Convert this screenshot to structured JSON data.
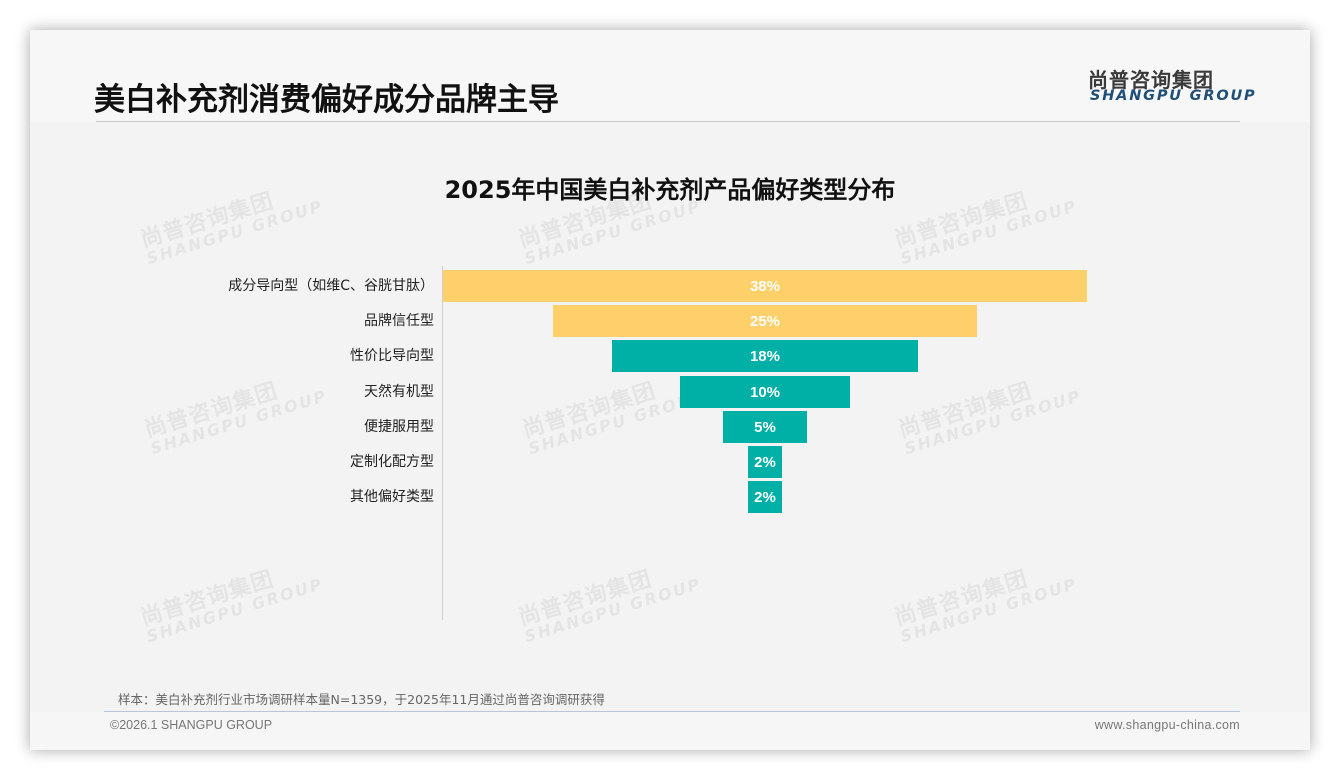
{
  "header": {
    "title": "美白补充剂消费偏好成分品牌主导",
    "logo_cn": "尚普咨询集团",
    "logo_en": "SHANGPU GROUP"
  },
  "watermark": {
    "cn": "尚普咨询集团",
    "en": "SHANGPU GROUP"
  },
  "colors": {
    "highlight": "#fdd06a",
    "primary": "#00b0a6",
    "background": "#f3f3f3",
    "logo_en": "#1f4e79"
  },
  "chart_data": {
    "type": "bar",
    "subtype": "funnel",
    "title": "2025年中国美白补充剂产品偏好类型分布",
    "xlabel": "",
    "ylabel": "",
    "unit": "%",
    "categories": [
      "成分导向型（如维C、谷胱甘肽）",
      "品牌信任型",
      "性价比导向型",
      "天然有机型",
      "便捷服用型",
      "定制化配方型",
      "其他偏好类型"
    ],
    "values": [
      38,
      25,
      18,
      10,
      5,
      2,
      2
    ],
    "labels": [
      "38%",
      "25%",
      "18%",
      "10%",
      "5%",
      "2%",
      "2%"
    ],
    "bar_colors": [
      "#fdd06a",
      "#fdd06a",
      "#00b0a6",
      "#00b0a6",
      "#00b0a6",
      "#00b0a6",
      "#00b0a6"
    ],
    "grid": false,
    "legend": "none"
  },
  "footer": {
    "note": "样本：美白补充剂行业市场调研样本量N=1359，于2025年11月通过尚普咨询调研获得",
    "copyright": "©2026.1 SHANGPU GROUP",
    "website": "www.shangpu-china.com"
  }
}
